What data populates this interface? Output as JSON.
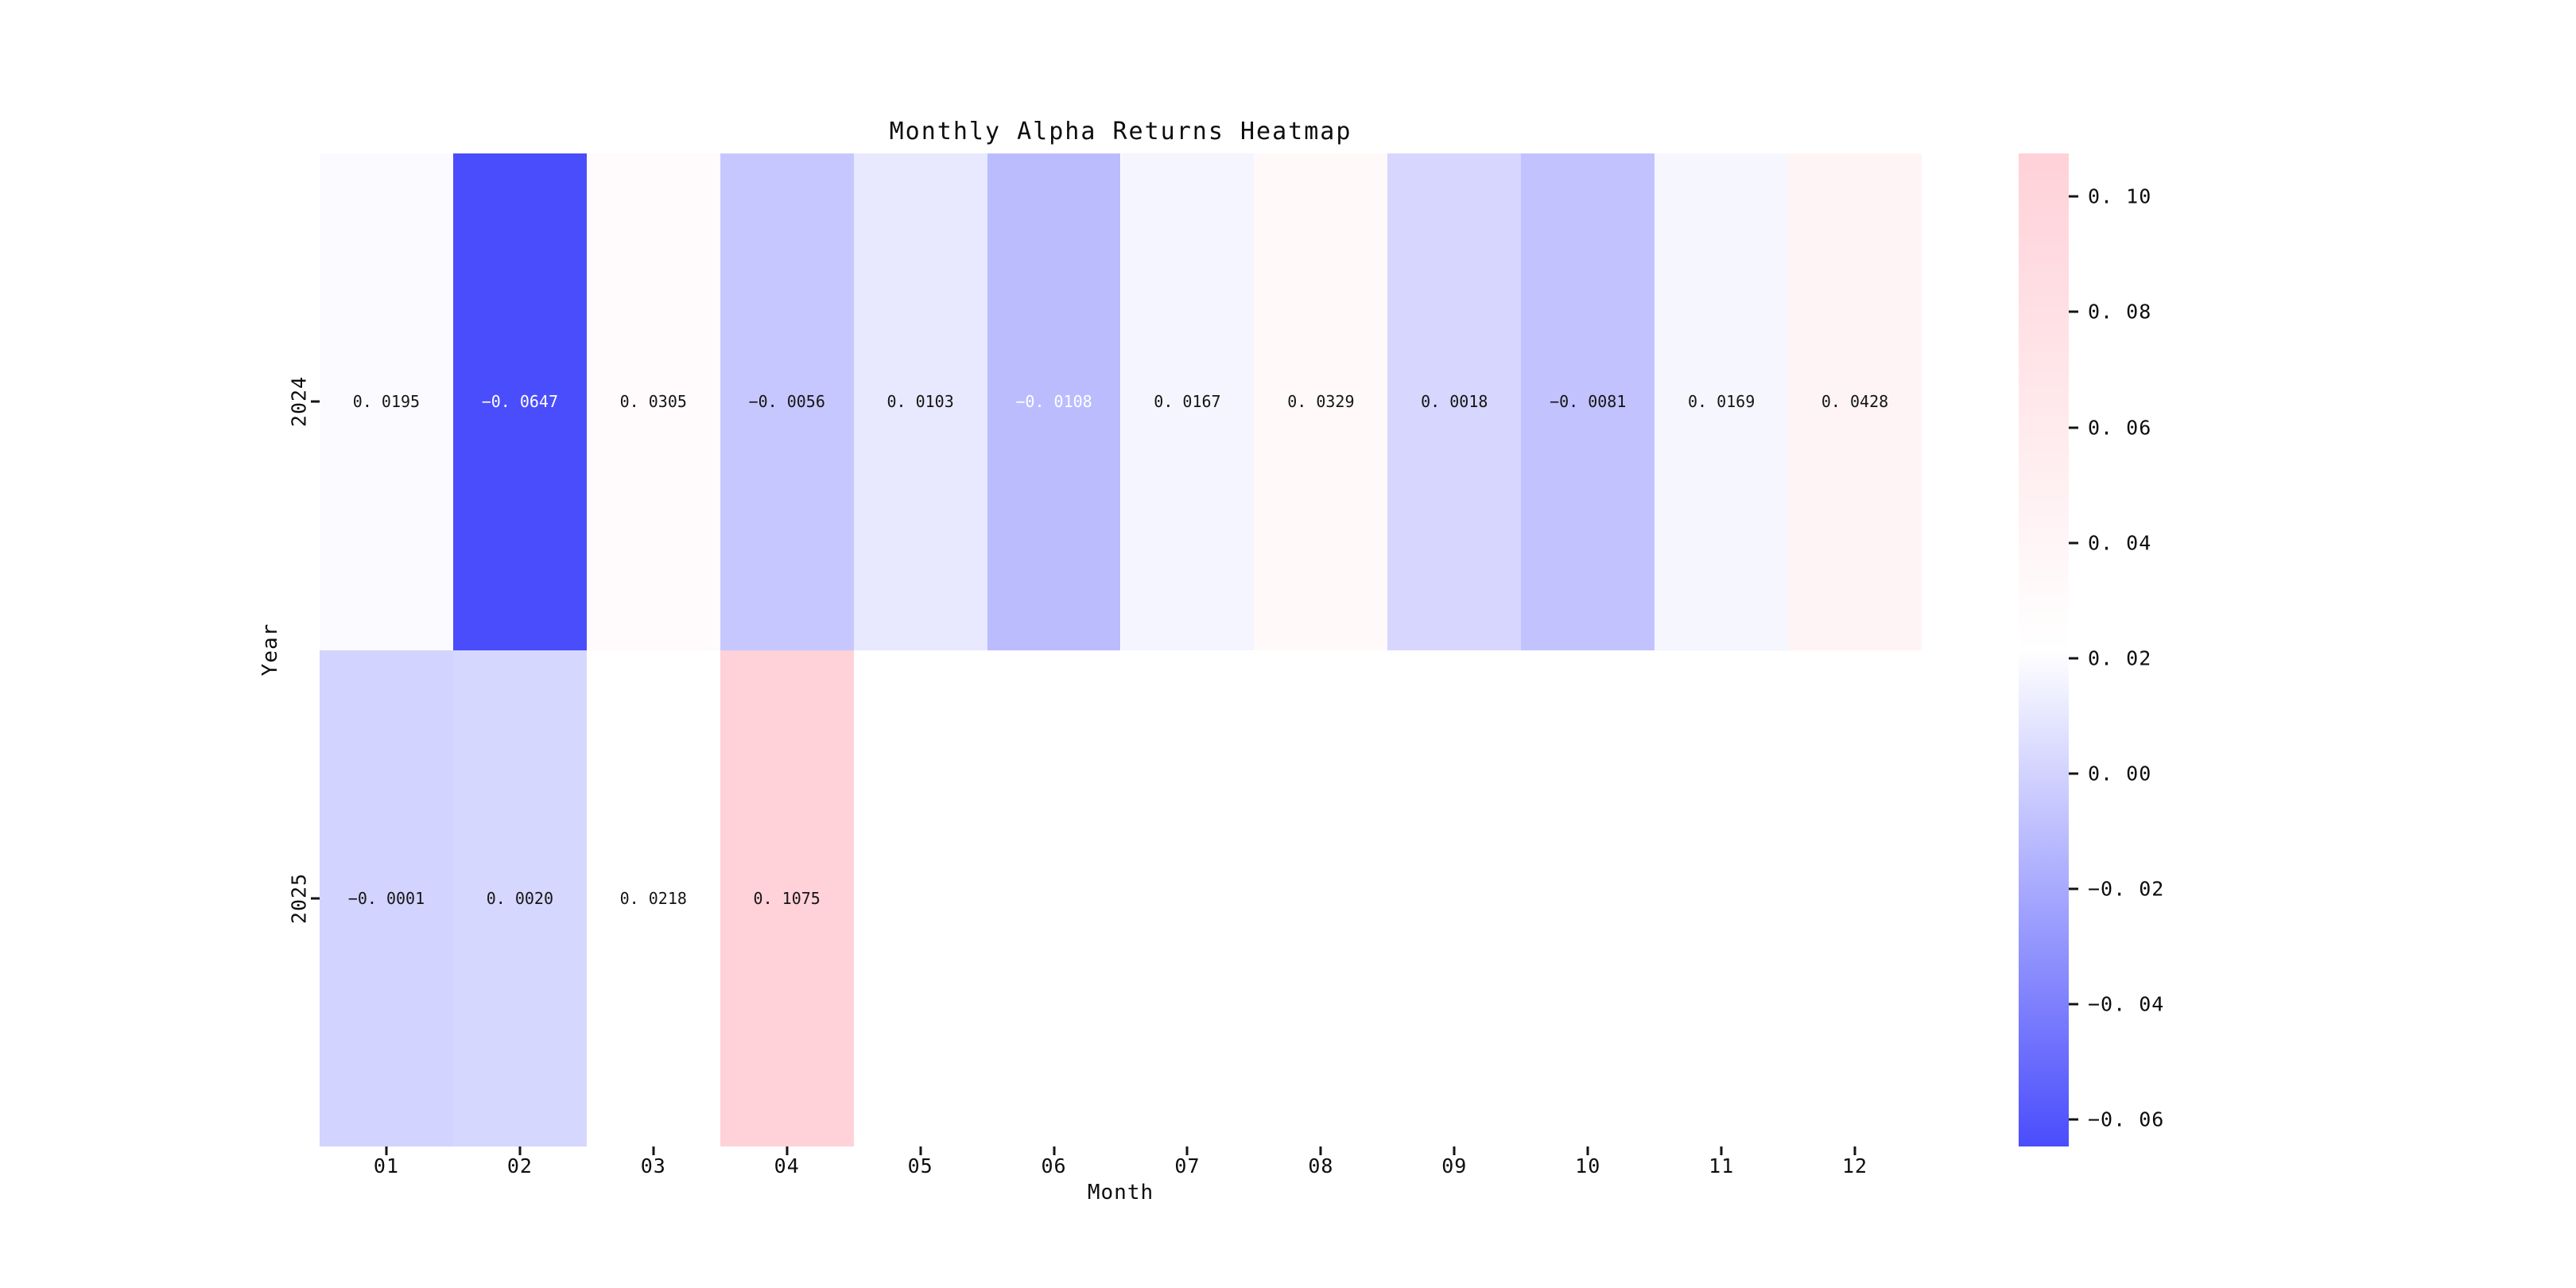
{
  "chart_data": {
    "type": "heatmap",
    "title": "Monthly Alpha Returns Heatmap",
    "xlabel": "Month",
    "ylabel": "Year",
    "columns": [
      "01",
      "02",
      "03",
      "04",
      "05",
      "06",
      "07",
      "08",
      "09",
      "10",
      "11",
      "12"
    ],
    "rows": [
      "2024",
      "2025"
    ],
    "values": [
      [
        0.0195,
        -0.0647,
        0.0305,
        -0.0056,
        0.0103,
        -0.0108,
        0.0167,
        0.0329,
        0.0018,
        -0.0081,
        0.0169,
        0.0428
      ],
      [
        -0.0001,
        0.002,
        0.0218,
        0.1075,
        null,
        null,
        null,
        null,
        null,
        null,
        null,
        null
      ]
    ],
    "cell_labels": [
      [
        "0.0195",
        "-0.0647",
        "0.0305",
        "-0.0056",
        "0.0103",
        "-0.0108",
        "0.0167",
        "0.0329",
        "0.0018",
        "-0.0081",
        "0.0169",
        "0.0428"
      ],
      [
        "-0.0001",
        "0.0020",
        "0.0218",
        "0.1075",
        "",
        "",
        "",
        "",
        "",
        "",
        "",
        ""
      ]
    ],
    "white_text_cells": [
      [
        0,
        1
      ],
      [
        0,
        5
      ]
    ],
    "colormap": {
      "vmin": -0.0647,
      "vmax": 0.1075,
      "negative_color": "#4a4dfc",
      "center_color": "#ffffff",
      "positive_color": "#ffd1d8",
      "annotation_black": "#151515",
      "annotation_white": "#ffffff",
      "empty_cell_color": "#ffffff"
    },
    "colorbar": {
      "position": "right",
      "ticks": [
        "0.10",
        "0.08",
        "0.06",
        "0.04",
        "0.02",
        "0.00",
        "-0.02",
        "-0.04",
        "-0.06"
      ]
    },
    "grid": false,
    "background": "#ffffff"
  }
}
